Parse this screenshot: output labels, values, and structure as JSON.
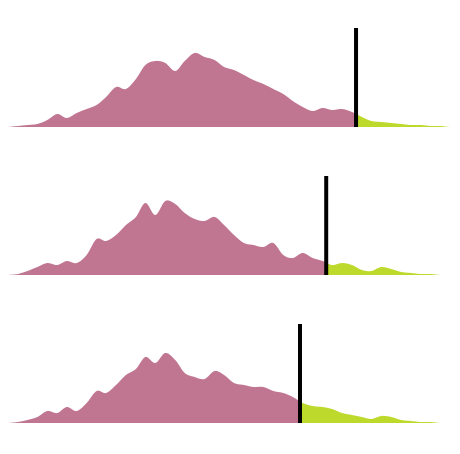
{
  "chart_data": [
    {
      "type": "area",
      "xlim": [
        0,
        1
      ],
      "ylim": [
        0,
        1
      ],
      "threshold": 0.77,
      "colors": {
        "below": "#c07591",
        "above": "#bcd92c",
        "marker": "#000000"
      },
      "x": [
        0,
        0.022,
        0.043,
        0.065,
        0.087,
        0.109,
        0.13,
        0.152,
        0.174,
        0.196,
        0.217,
        0.239,
        0.261,
        0.283,
        0.304,
        0.326,
        0.348,
        0.37,
        0.391,
        0.413,
        0.435,
        0.457,
        0.478,
        0.5,
        0.522,
        0.543,
        0.565,
        0.587,
        0.609,
        0.63,
        0.652,
        0.674,
        0.696,
        0.717,
        0.739,
        0.761,
        0.783,
        0.804,
        0.826,
        0.848,
        0.87,
        0.891,
        0.913,
        0.935,
        0.957,
        0.978,
        1.0
      ],
      "values": [
        0.0,
        0.01,
        0.02,
        0.03,
        0.07,
        0.13,
        0.09,
        0.14,
        0.18,
        0.22,
        0.3,
        0.4,
        0.38,
        0.48,
        0.62,
        0.66,
        0.64,
        0.56,
        0.66,
        0.74,
        0.7,
        0.67,
        0.6,
        0.57,
        0.52,
        0.47,
        0.43,
        0.38,
        0.33,
        0.26,
        0.2,
        0.16,
        0.19,
        0.17,
        0.18,
        0.15,
        0.1,
        0.06,
        0.05,
        0.04,
        0.03,
        0.02,
        0.02,
        0.01,
        0.01,
        0.0,
        0.0
      ]
    },
    {
      "type": "area",
      "xlim": [
        0,
        1
      ],
      "ylim": [
        0,
        1
      ],
      "threshold": 0.704,
      "colors": {
        "below": "#c07591",
        "above": "#bcd92c",
        "marker": "#000000"
      },
      "x": [
        0,
        0.022,
        0.043,
        0.065,
        0.087,
        0.109,
        0.13,
        0.152,
        0.174,
        0.196,
        0.217,
        0.239,
        0.261,
        0.283,
        0.304,
        0.326,
        0.348,
        0.37,
        0.391,
        0.413,
        0.435,
        0.457,
        0.478,
        0.5,
        0.522,
        0.543,
        0.565,
        0.587,
        0.609,
        0.63,
        0.652,
        0.674,
        0.696,
        0.717,
        0.739,
        0.761,
        0.783,
        0.804,
        0.826,
        0.848,
        0.87,
        0.891,
        0.913,
        0.935,
        0.957,
        0.978,
        1.0
      ],
      "values": [
        0.0,
        0.01,
        0.04,
        0.08,
        0.12,
        0.1,
        0.14,
        0.12,
        0.2,
        0.36,
        0.34,
        0.4,
        0.5,
        0.58,
        0.72,
        0.6,
        0.74,
        0.71,
        0.62,
        0.56,
        0.54,
        0.58,
        0.5,
        0.4,
        0.32,
        0.3,
        0.28,
        0.32,
        0.2,
        0.17,
        0.22,
        0.17,
        0.14,
        0.1,
        0.12,
        0.1,
        0.05,
        0.04,
        0.08,
        0.06,
        0.03,
        0.02,
        0.01,
        0.01,
        0.0,
        0.0,
        0.0
      ]
    },
    {
      "type": "area",
      "xlim": [
        0,
        1
      ],
      "ylim": [
        0,
        1
      ],
      "threshold": 0.646,
      "colors": {
        "below": "#c07591",
        "above": "#bcd92c",
        "marker": "#000000"
      },
      "x": [
        0,
        0.022,
        0.043,
        0.065,
        0.087,
        0.109,
        0.13,
        0.152,
        0.174,
        0.196,
        0.217,
        0.239,
        0.261,
        0.283,
        0.304,
        0.326,
        0.348,
        0.37,
        0.391,
        0.413,
        0.435,
        0.457,
        0.478,
        0.5,
        0.522,
        0.543,
        0.565,
        0.587,
        0.609,
        0.63,
        0.652,
        0.674,
        0.696,
        0.717,
        0.739,
        0.761,
        0.783,
        0.804,
        0.826,
        0.848,
        0.87,
        0.891,
        0.913,
        0.935,
        0.957,
        0.978,
        1.0
      ],
      "values": [
        0.0,
        0.01,
        0.03,
        0.06,
        0.12,
        0.1,
        0.16,
        0.12,
        0.2,
        0.32,
        0.3,
        0.38,
        0.48,
        0.54,
        0.66,
        0.6,
        0.7,
        0.63,
        0.5,
        0.46,
        0.44,
        0.52,
        0.48,
        0.4,
        0.38,
        0.36,
        0.36,
        0.32,
        0.3,
        0.26,
        0.2,
        0.17,
        0.16,
        0.14,
        0.1,
        0.08,
        0.06,
        0.04,
        0.07,
        0.06,
        0.03,
        0.02,
        0.01,
        0.01,
        0.0,
        0.0,
        0.0
      ]
    }
  ]
}
